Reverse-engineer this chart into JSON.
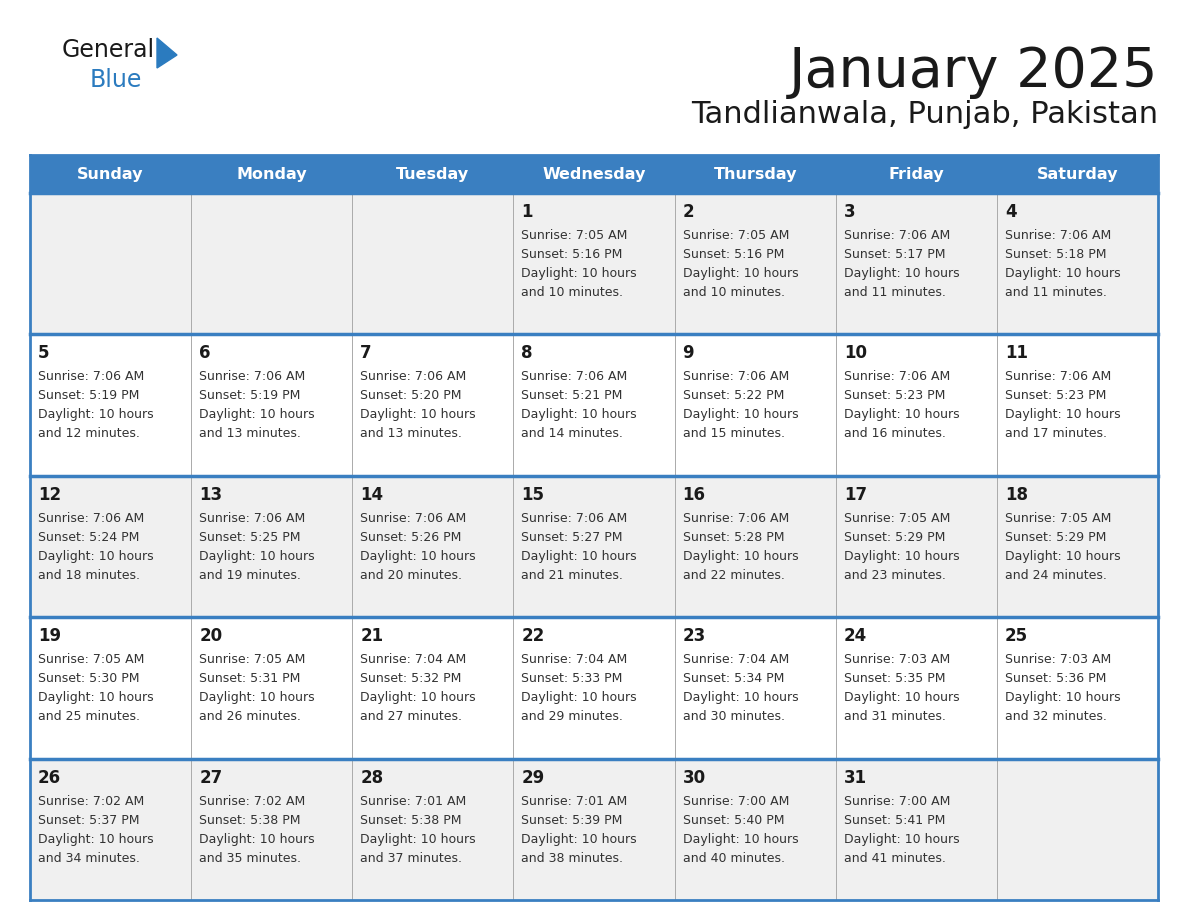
{
  "title": "January 2025",
  "subtitle": "Tandlianwala, Punjab, Pakistan",
  "days_of_week": [
    "Sunday",
    "Monday",
    "Tuesday",
    "Wednesday",
    "Thursday",
    "Friday",
    "Saturday"
  ],
  "header_bg": "#3a7fc1",
  "header_text": "#ffffff",
  "row_bg_odd": "#f0f0f0",
  "row_bg_even": "#ffffff",
  "separator_color": "#3a7fc1",
  "day_num_color": "#1a1a1a",
  "cell_text_color": "#333333",
  "title_color": "#1a1a1a",
  "subtitle_color": "#1a1a1a",
  "logo_general_color": "#1a1a1a",
  "logo_blue_color": "#2b7bbf",
  "logo_triangle_color": "#2b7bbf",
  "calendar_data": [
    [
      {
        "day": "",
        "sunrise": "",
        "sunset": "",
        "daylight_line1": "",
        "daylight_line2": ""
      },
      {
        "day": "",
        "sunrise": "",
        "sunset": "",
        "daylight_line1": "",
        "daylight_line2": ""
      },
      {
        "day": "",
        "sunrise": "",
        "sunset": "",
        "daylight_line1": "",
        "daylight_line2": ""
      },
      {
        "day": "1",
        "sunrise": "7:05 AM",
        "sunset": "5:16 PM",
        "daylight_line1": "10 hours",
        "daylight_line2": "and 10 minutes."
      },
      {
        "day": "2",
        "sunrise": "7:05 AM",
        "sunset": "5:16 PM",
        "daylight_line1": "10 hours",
        "daylight_line2": "and 10 minutes."
      },
      {
        "day": "3",
        "sunrise": "7:06 AM",
        "sunset": "5:17 PM",
        "daylight_line1": "10 hours",
        "daylight_line2": "and 11 minutes."
      },
      {
        "day": "4",
        "sunrise": "7:06 AM",
        "sunset": "5:18 PM",
        "daylight_line1": "10 hours",
        "daylight_line2": "and 11 minutes."
      }
    ],
    [
      {
        "day": "5",
        "sunrise": "7:06 AM",
        "sunset": "5:19 PM",
        "daylight_line1": "10 hours",
        "daylight_line2": "and 12 minutes."
      },
      {
        "day": "6",
        "sunrise": "7:06 AM",
        "sunset": "5:19 PM",
        "daylight_line1": "10 hours",
        "daylight_line2": "and 13 minutes."
      },
      {
        "day": "7",
        "sunrise": "7:06 AM",
        "sunset": "5:20 PM",
        "daylight_line1": "10 hours",
        "daylight_line2": "and 13 minutes."
      },
      {
        "day": "8",
        "sunrise": "7:06 AM",
        "sunset": "5:21 PM",
        "daylight_line1": "10 hours",
        "daylight_line2": "and 14 minutes."
      },
      {
        "day": "9",
        "sunrise": "7:06 AM",
        "sunset": "5:22 PM",
        "daylight_line1": "10 hours",
        "daylight_line2": "and 15 minutes."
      },
      {
        "day": "10",
        "sunrise": "7:06 AM",
        "sunset": "5:23 PM",
        "daylight_line1": "10 hours",
        "daylight_line2": "and 16 minutes."
      },
      {
        "day": "11",
        "sunrise": "7:06 AM",
        "sunset": "5:23 PM",
        "daylight_line1": "10 hours",
        "daylight_line2": "and 17 minutes."
      }
    ],
    [
      {
        "day": "12",
        "sunrise": "7:06 AM",
        "sunset": "5:24 PM",
        "daylight_line1": "10 hours",
        "daylight_line2": "and 18 minutes."
      },
      {
        "day": "13",
        "sunrise": "7:06 AM",
        "sunset": "5:25 PM",
        "daylight_line1": "10 hours",
        "daylight_line2": "and 19 minutes."
      },
      {
        "day": "14",
        "sunrise": "7:06 AM",
        "sunset": "5:26 PM",
        "daylight_line1": "10 hours",
        "daylight_line2": "and 20 minutes."
      },
      {
        "day": "15",
        "sunrise": "7:06 AM",
        "sunset": "5:27 PM",
        "daylight_line1": "10 hours",
        "daylight_line2": "and 21 minutes."
      },
      {
        "day": "16",
        "sunrise": "7:06 AM",
        "sunset": "5:28 PM",
        "daylight_line1": "10 hours",
        "daylight_line2": "and 22 minutes."
      },
      {
        "day": "17",
        "sunrise": "7:05 AM",
        "sunset": "5:29 PM",
        "daylight_line1": "10 hours",
        "daylight_line2": "and 23 minutes."
      },
      {
        "day": "18",
        "sunrise": "7:05 AM",
        "sunset": "5:29 PM",
        "daylight_line1": "10 hours",
        "daylight_line2": "and 24 minutes."
      }
    ],
    [
      {
        "day": "19",
        "sunrise": "7:05 AM",
        "sunset": "5:30 PM",
        "daylight_line1": "10 hours",
        "daylight_line2": "and 25 minutes."
      },
      {
        "day": "20",
        "sunrise": "7:05 AM",
        "sunset": "5:31 PM",
        "daylight_line1": "10 hours",
        "daylight_line2": "and 26 minutes."
      },
      {
        "day": "21",
        "sunrise": "7:04 AM",
        "sunset": "5:32 PM",
        "daylight_line1": "10 hours",
        "daylight_line2": "and 27 minutes."
      },
      {
        "day": "22",
        "sunrise": "7:04 AM",
        "sunset": "5:33 PM",
        "daylight_line1": "10 hours",
        "daylight_line2": "and 29 minutes."
      },
      {
        "day": "23",
        "sunrise": "7:04 AM",
        "sunset": "5:34 PM",
        "daylight_line1": "10 hours",
        "daylight_line2": "and 30 minutes."
      },
      {
        "day": "24",
        "sunrise": "7:03 AM",
        "sunset": "5:35 PM",
        "daylight_line1": "10 hours",
        "daylight_line2": "and 31 minutes."
      },
      {
        "day": "25",
        "sunrise": "7:03 AM",
        "sunset": "5:36 PM",
        "daylight_line1": "10 hours",
        "daylight_line2": "and 32 minutes."
      }
    ],
    [
      {
        "day": "26",
        "sunrise": "7:02 AM",
        "sunset": "5:37 PM",
        "daylight_line1": "10 hours",
        "daylight_line2": "and 34 minutes."
      },
      {
        "day": "27",
        "sunrise": "7:02 AM",
        "sunset": "5:38 PM",
        "daylight_line1": "10 hours",
        "daylight_line2": "and 35 minutes."
      },
      {
        "day": "28",
        "sunrise": "7:01 AM",
        "sunset": "5:38 PM",
        "daylight_line1": "10 hours",
        "daylight_line2": "and 37 minutes."
      },
      {
        "day": "29",
        "sunrise": "7:01 AM",
        "sunset": "5:39 PM",
        "daylight_line1": "10 hours",
        "daylight_line2": "and 38 minutes."
      },
      {
        "day": "30",
        "sunrise": "7:00 AM",
        "sunset": "5:40 PM",
        "daylight_line1": "10 hours",
        "daylight_line2": "and 40 minutes."
      },
      {
        "day": "31",
        "sunrise": "7:00 AM",
        "sunset": "5:41 PM",
        "daylight_line1": "10 hours",
        "daylight_line2": "and 41 minutes."
      },
      {
        "day": "",
        "sunrise": "",
        "sunset": "",
        "daylight_line1": "",
        "daylight_line2": ""
      }
    ]
  ]
}
